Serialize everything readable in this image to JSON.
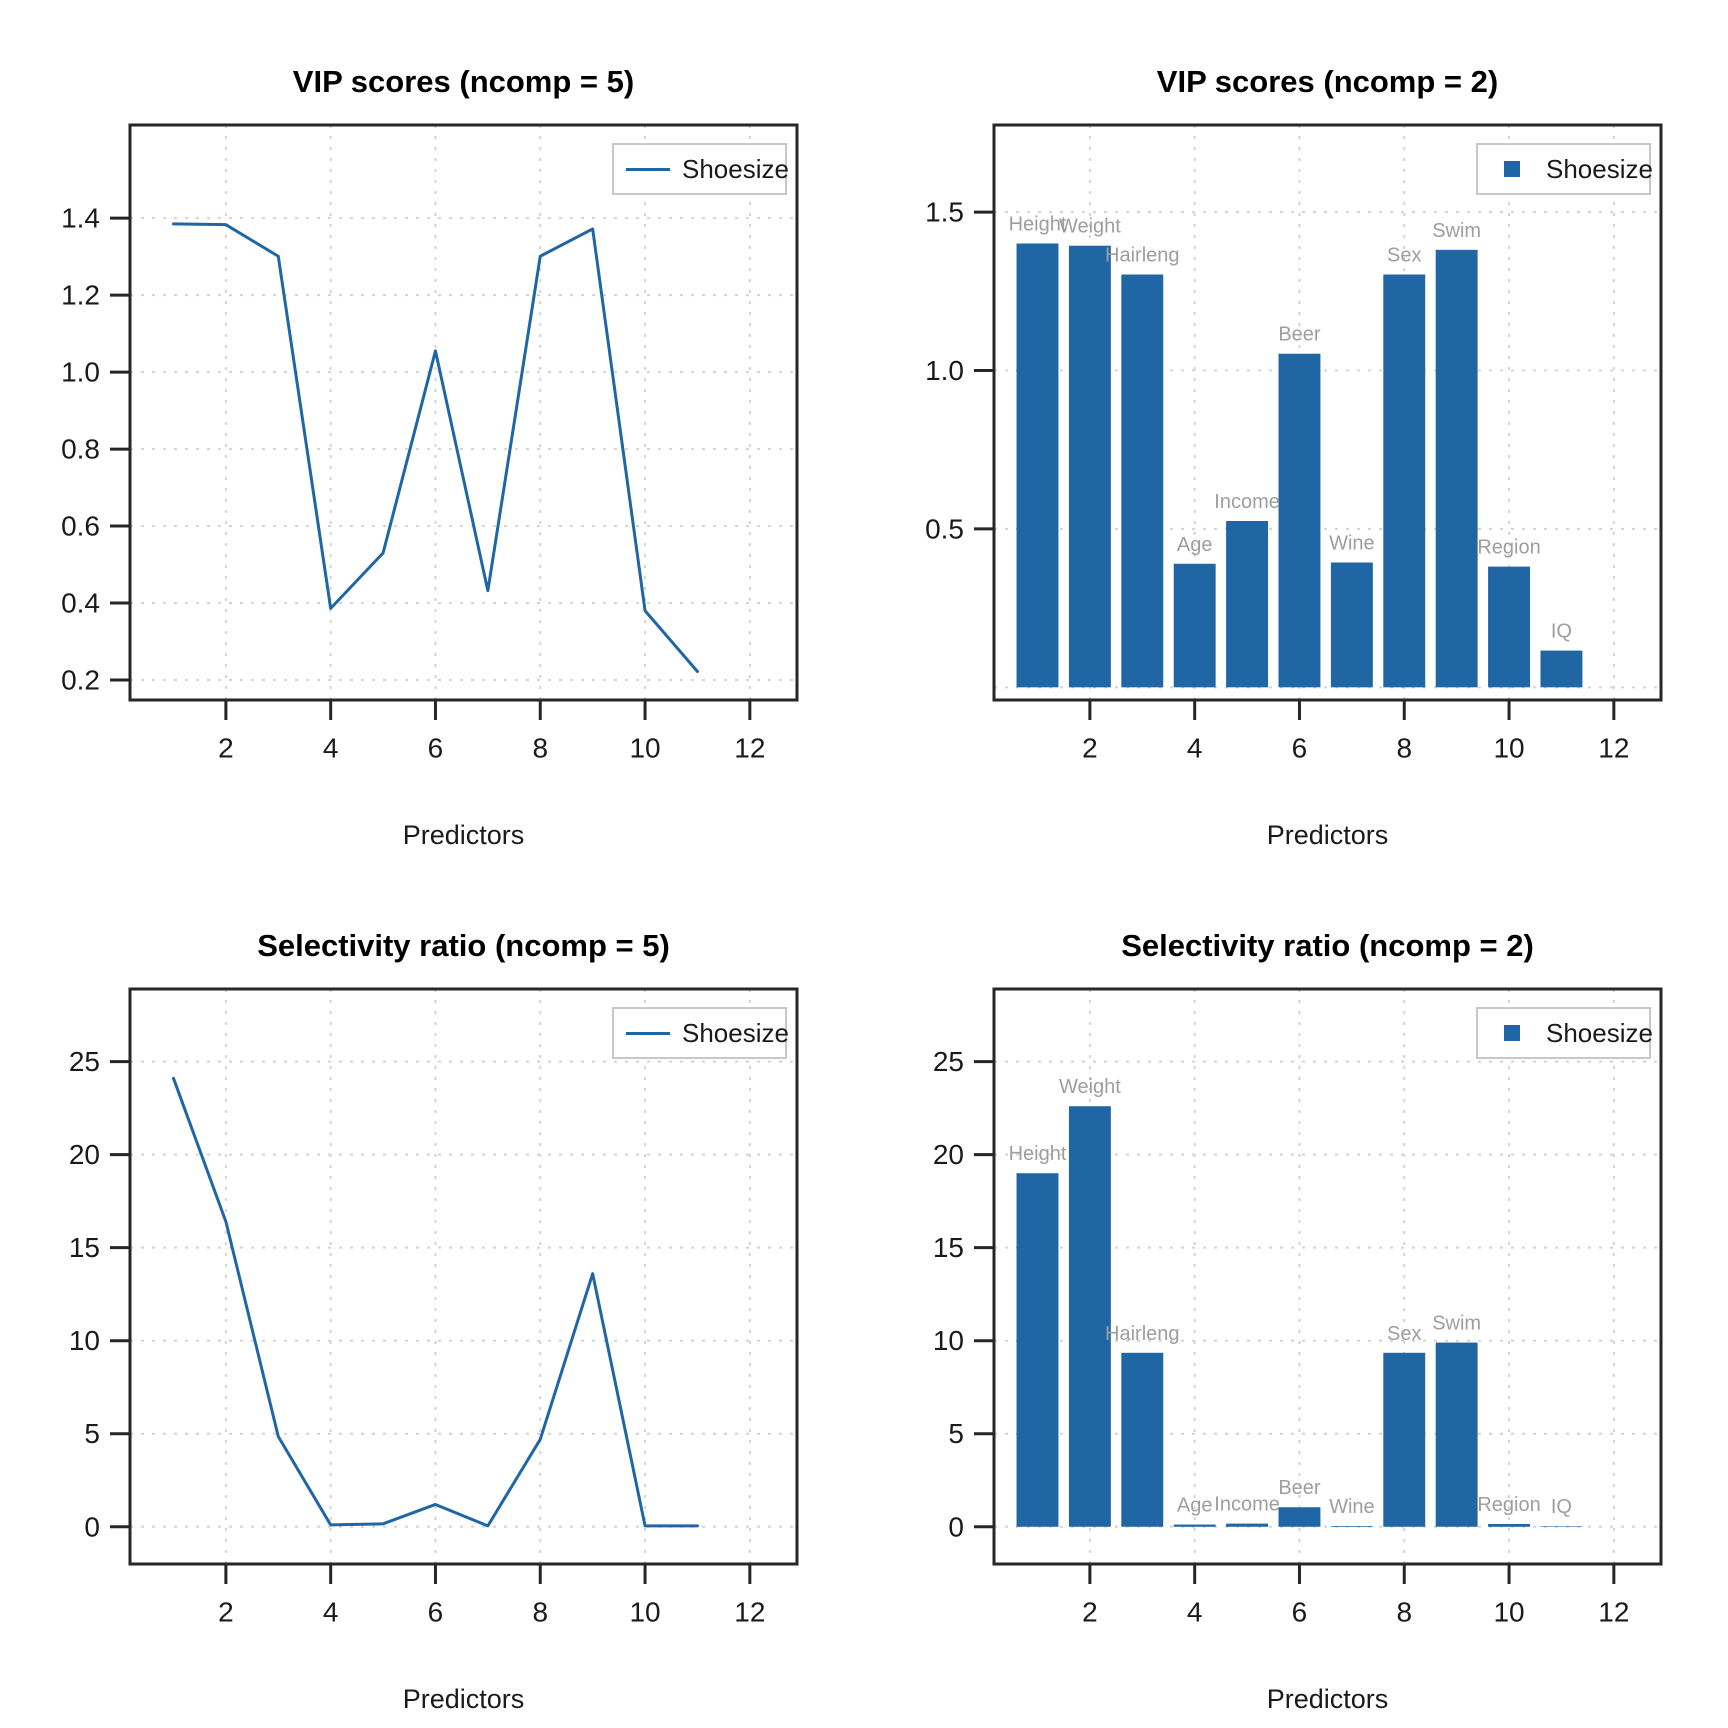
{
  "figure": {
    "background": "#ffffff",
    "accent_blue": "#2066A5",
    "grid_color": "#d4d4d4",
    "box_color": "#262626",
    "bar_label_color": "#9e9e9e",
    "legend_border_color": "#c8c8c8",
    "text_color": "#1a1a1a"
  },
  "chart_data": [
    {
      "id": "vip-ncomp5",
      "type": "line",
      "title": "VIP scores (ncomp = 5)",
      "xlabel": "Predictors",
      "legend": {
        "label": "Shoesize",
        "marker": "line"
      },
      "x": [
        1,
        2,
        3,
        4,
        5,
        6,
        7,
        8,
        9,
        10,
        11
      ],
      "values": [
        1.385,
        1.383,
        1.301,
        0.386,
        0.53,
        1.055,
        0.432,
        1.301,
        1.372,
        0.38,
        0.222
      ],
      "xlim": [
        0.17,
        12.9
      ],
      "ylim": [
        0.148,
        1.642
      ],
      "xticks": [
        2,
        4,
        6,
        8,
        10,
        12
      ],
      "xtick_labels": [
        "2",
        "4",
        "6",
        "8",
        "10",
        "12"
      ],
      "yticks": [
        0.2,
        0.4,
        0.6,
        0.8,
        1.0,
        1.2,
        1.4
      ],
      "ytick_labels": [
        "0.2",
        "0.4",
        "0.6",
        "0.8",
        "1.0",
        "1.2",
        "1.4"
      ],
      "grid_y_extra": [],
      "grid": true,
      "legend_position": "topright"
    },
    {
      "id": "vip-ncomp2",
      "type": "bar",
      "title": "VIP scores (ncomp = 2)",
      "xlabel": "Predictors",
      "legend": {
        "label": "Shoesize",
        "marker": "square"
      },
      "x": [
        1,
        2,
        3,
        4,
        5,
        6,
        7,
        8,
        9,
        10,
        11
      ],
      "values": [
        1.401,
        1.394,
        1.303,
        0.39,
        0.525,
        1.053,
        0.394,
        1.303,
        1.381,
        0.381,
        0.116
      ],
      "labels": [
        "Height",
        "Weight",
        "Hairleng",
        "Age",
        "Income",
        "Beer",
        "Wine",
        "Sex",
        "Swim",
        "Region",
        "IQ"
      ],
      "xlim": [
        0.17,
        12.9
      ],
      "ylim": [
        -0.04,
        1.775
      ],
      "xticks": [
        2,
        4,
        6,
        8,
        10,
        12
      ],
      "xtick_labels": [
        "2",
        "4",
        "6",
        "8",
        "10",
        "12"
      ],
      "yticks": [
        0.5,
        1.0,
        1.5
      ],
      "ytick_labels": [
        "0.5",
        "1.0",
        "1.5"
      ],
      "grid_y_extra": [
        0
      ],
      "bar_width": 0.8,
      "grid": true,
      "legend_position": "topright"
    },
    {
      "id": "sr-ncomp5",
      "type": "line",
      "title": "Selectivity ratio (ncomp = 5)",
      "xlabel": "Predictors",
      "legend": {
        "label": "Shoesize",
        "marker": "line"
      },
      "x": [
        1,
        2,
        3,
        4,
        5,
        6,
        7,
        8,
        9,
        10,
        11
      ],
      "values": [
        24.1,
        16.4,
        4.85,
        0.1,
        0.16,
        1.2,
        0.05,
        4.7,
        13.6,
        0.05,
        0.05
      ],
      "xlim": [
        0.17,
        12.9
      ],
      "ylim": [
        -2.0,
        28.9
      ],
      "xticks": [
        2,
        4,
        6,
        8,
        10,
        12
      ],
      "xtick_labels": [
        "2",
        "4",
        "6",
        "8",
        "10",
        "12"
      ],
      "yticks": [
        0,
        5,
        10,
        15,
        20,
        25
      ],
      "ytick_labels": [
        "0",
        "5",
        "10",
        "15",
        "20",
        "25"
      ],
      "grid_y_extra": [],
      "grid": true,
      "legend_position": "topright"
    },
    {
      "id": "sr-ncomp2",
      "type": "bar",
      "title": "Selectivity ratio (ncomp = 2)",
      "xlabel": "Predictors",
      "legend": {
        "label": "Shoesize",
        "marker": "square"
      },
      "x": [
        1,
        2,
        3,
        4,
        5,
        6,
        7,
        8,
        9,
        10,
        11
      ],
      "values": [
        19.0,
        22.6,
        9.35,
        0.12,
        0.17,
        1.05,
        0.04,
        9.35,
        9.9,
        0.15,
        0.03
      ],
      "labels": [
        "Height",
        "Weight",
        "Hairleng",
        "Age",
        "Income",
        "Beer",
        "Wine",
        "Sex",
        "Swim",
        "Region",
        "IQ"
      ],
      "xlim": [
        0.17,
        12.9
      ],
      "ylim": [
        -2.0,
        28.9
      ],
      "xticks": [
        2,
        4,
        6,
        8,
        10,
        12
      ],
      "xtick_labels": [
        "2",
        "4",
        "6",
        "8",
        "10",
        "12"
      ],
      "yticks": [
        0,
        5,
        10,
        15,
        20,
        25
      ],
      "ytick_labels": [
        "0",
        "5",
        "10",
        "15",
        "20",
        "25"
      ],
      "grid_y_extra": [],
      "bar_width": 0.8,
      "grid": true,
      "legend_position": "topright"
    }
  ]
}
